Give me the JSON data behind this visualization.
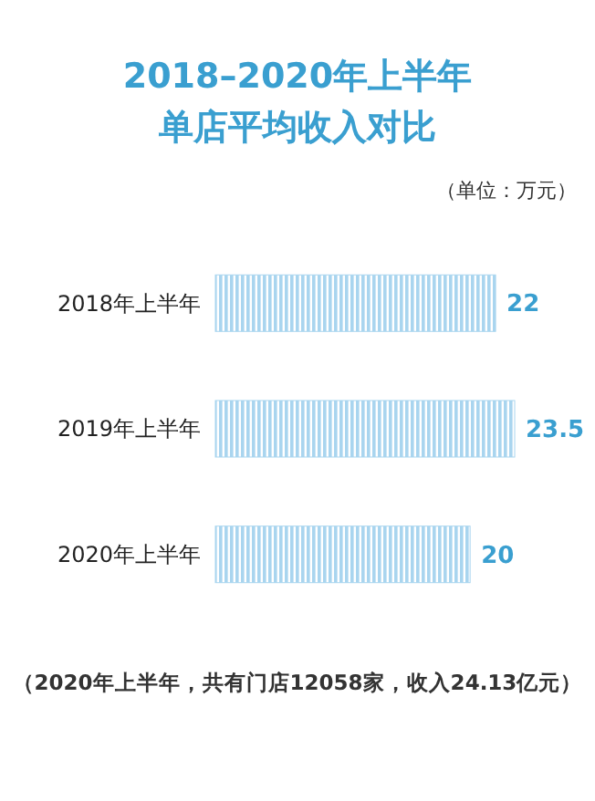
{
  "chart_data": {
    "type": "bar",
    "orientation": "horizontal",
    "title": "2018–2020年上半年",
    "subtitle": "单店平均收入对比",
    "categories": [
      "2018年上半年",
      "2019年上半年",
      "2020年上半年"
    ],
    "values": [
      22,
      23.5,
      20
    ],
    "color": "#a9d5ef",
    "data_labels": true,
    "annotations": [
      "（单位：万元）",
      "（2020年上半年，共有门店12058家，收入24.13亿元）"
    ]
  }
}
